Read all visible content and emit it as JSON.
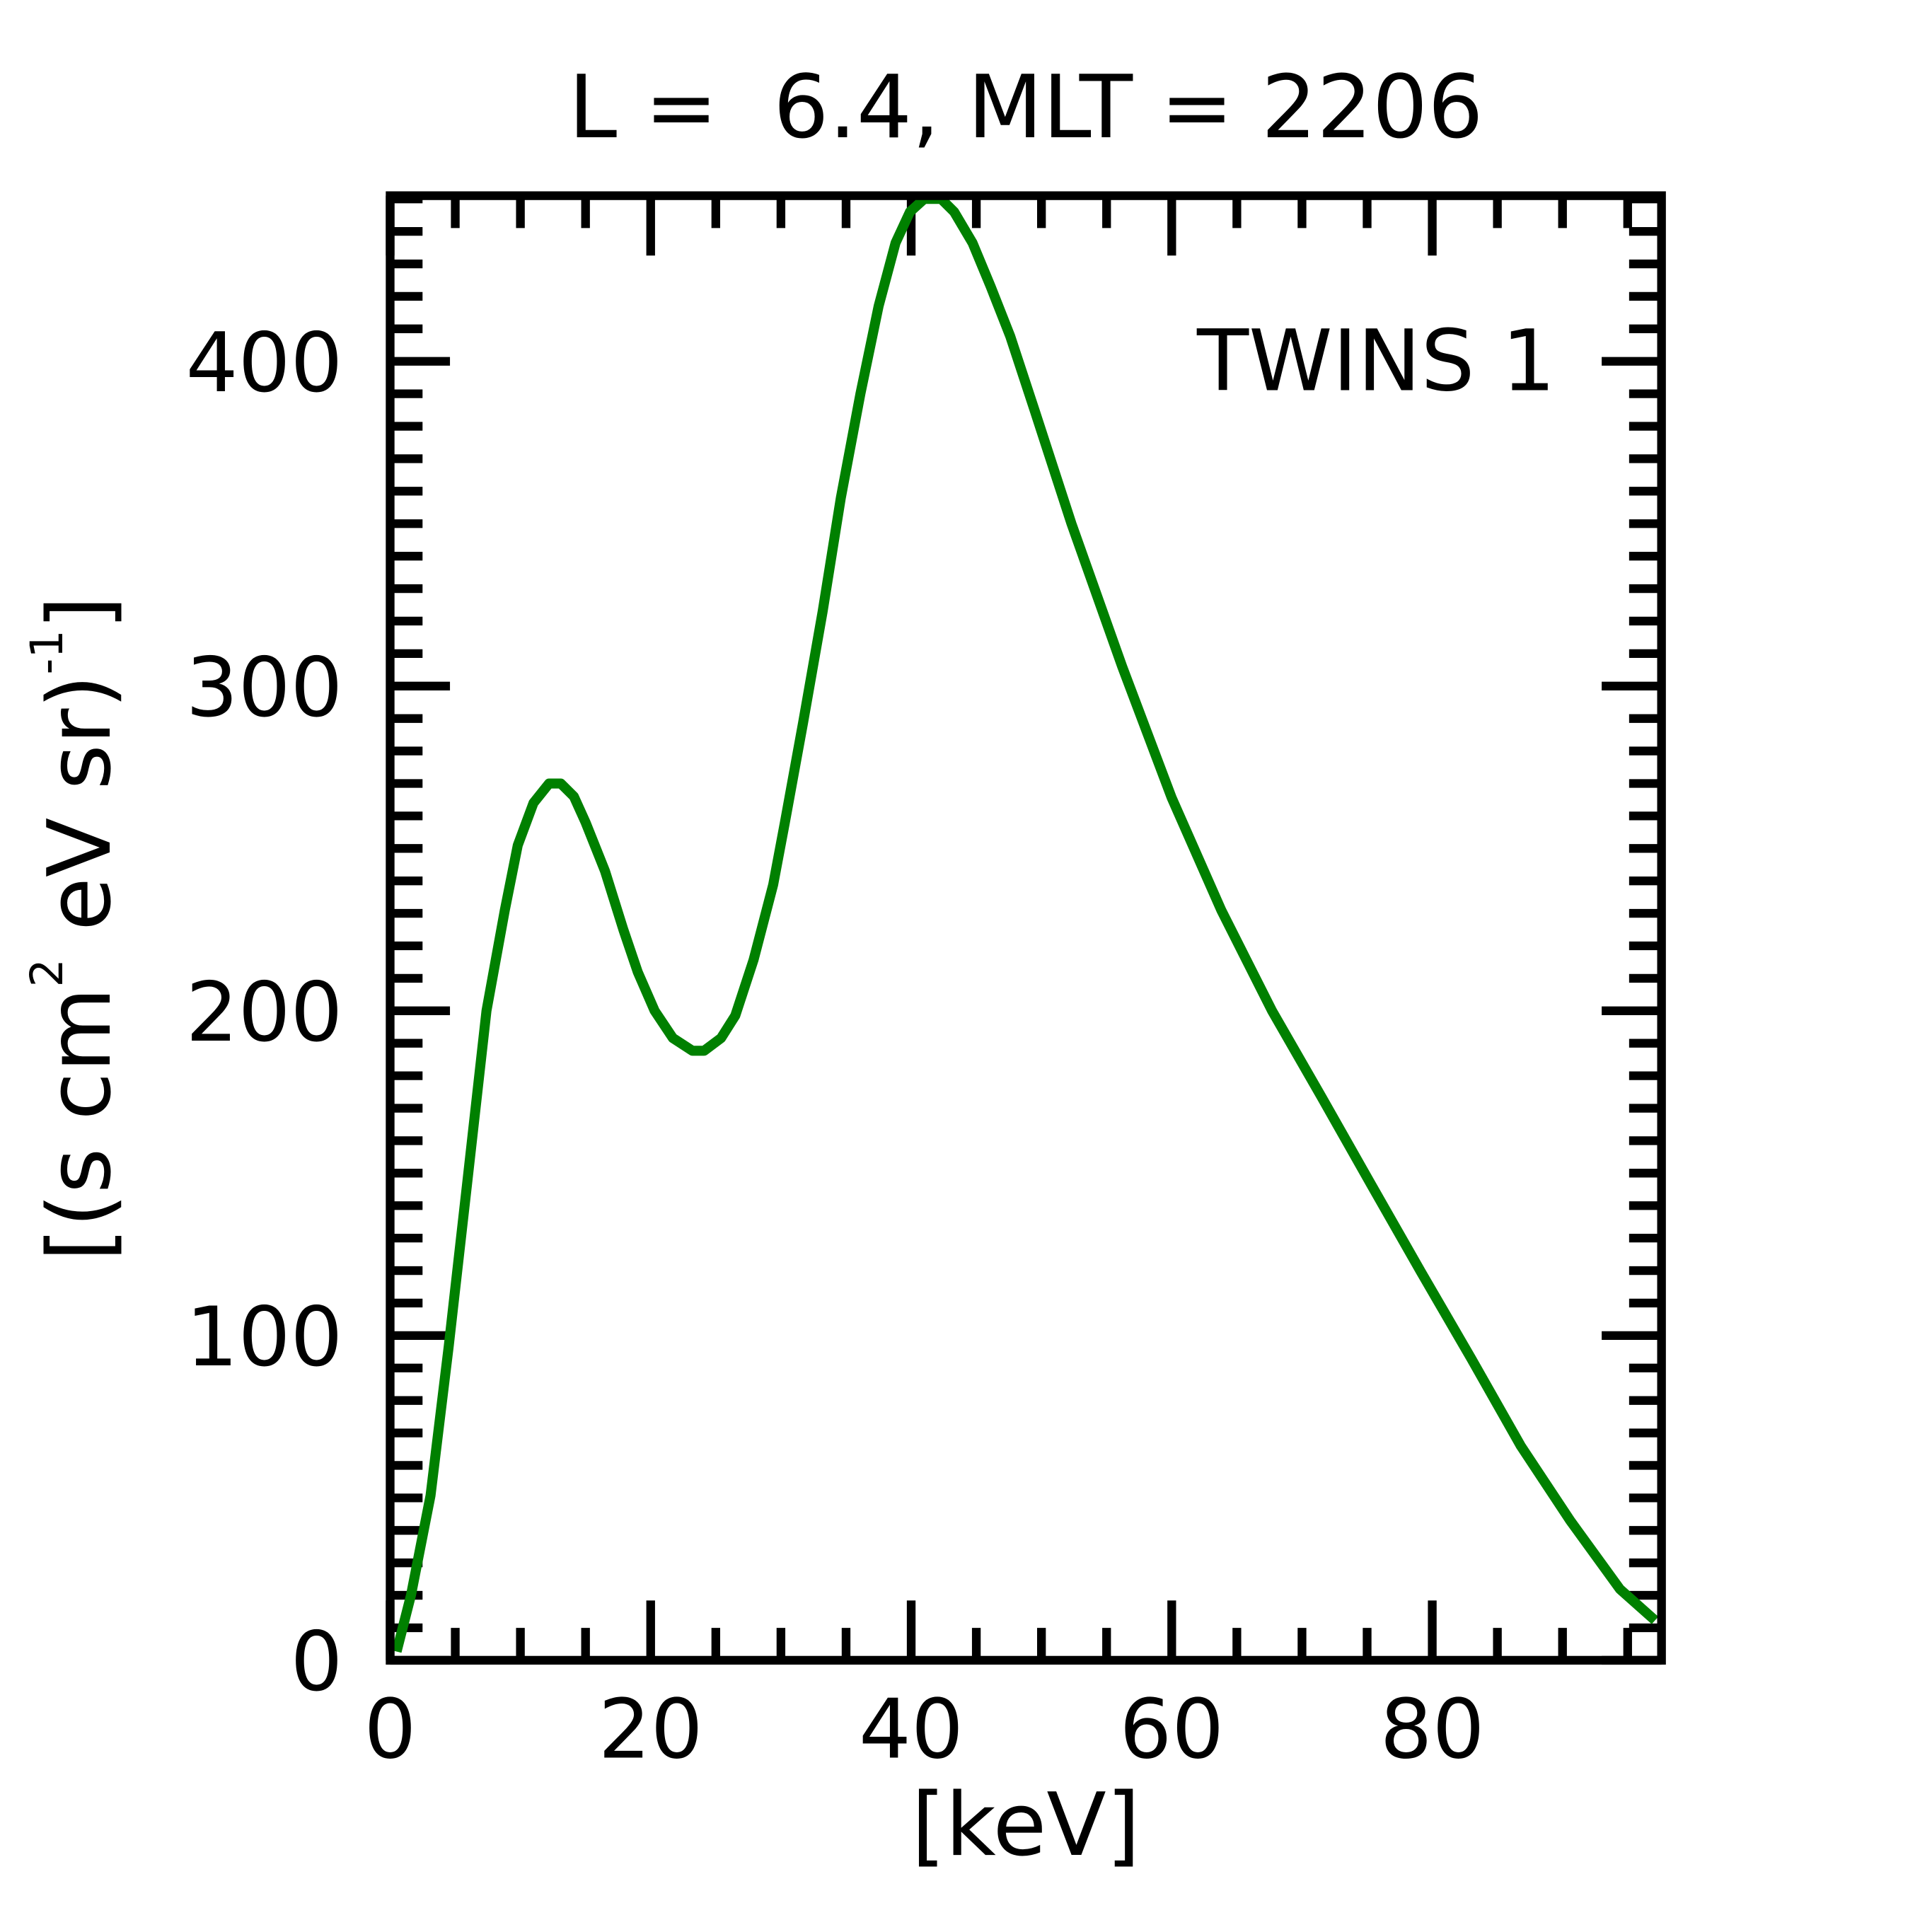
{
  "chart_data": {
    "type": "line",
    "title": "L =  6.4, MLT = 2206",
    "xlabel": "[keV]",
    "ylabel": {
      "prefix": "[(s cm",
      "sup1": "2",
      "mid": " eV sr)",
      "sup2": "-1",
      "suffix": "]"
    },
    "xlim": [
      0,
      97.6
    ],
    "ylim": [
      0,
      451
    ],
    "xticks": [
      0,
      20,
      40,
      60,
      80
    ],
    "xtick_labels": [
      "0",
      "20",
      "40",
      "60",
      "80"
    ],
    "yticks": [
      0,
      100,
      200,
      300,
      400
    ],
    "ytick_labels": [
      "0",
      "100",
      "200",
      "300",
      "400"
    ],
    "x_minor_step": 5,
    "y_minor_step": 10,
    "grid": false,
    "legend": {
      "text": "TWINS 1",
      "placement": "top-right"
    },
    "series": [
      {
        "name": "TWINS 1",
        "color": "#008000",
        "x": [
          0.5,
          1.6,
          3.1,
          4.5,
          5.9,
          7.4,
          8.8,
          9.8,
          11,
          12.2,
          13.1,
          14.1,
          15,
          16.5,
          17.9,
          19,
          20.3,
          21.7,
          23.2,
          24.1,
          25.4,
          26.5,
          27.9,
          29.4,
          30.3,
          31.7,
          33.2,
          34.6,
          36.1,
          37.5,
          38.8,
          39.9,
          41,
          42.3,
          43.3,
          44.7,
          46.1,
          47.6,
          49.5,
          52.3,
          56.2,
          60,
          63.8,
          67.7,
          71.5,
          75.3,
          79.1,
          83,
          86.8,
          90.6,
          94.4,
          97.1
        ],
        "y": [
          2.7,
          20,
          50.7,
          96.7,
          146.6,
          200,
          231,
          251,
          264,
          270,
          270,
          266,
          258,
          243,
          225,
          212,
          200,
          191.6,
          187.7,
          187.7,
          191.6,
          198.5,
          215.7,
          238.8,
          258,
          288.7,
          323,
          358,
          390,
          417,
          436.5,
          446,
          450,
          450,
          446,
          436.5,
          423,
          407.7,
          384.6,
          350,
          306,
          265.6,
          231,
          200,
          173.5,
          146.6,
          119.8,
          92.9,
          66,
          43,
          21.9,
          12.3
        ]
      }
    ]
  }
}
